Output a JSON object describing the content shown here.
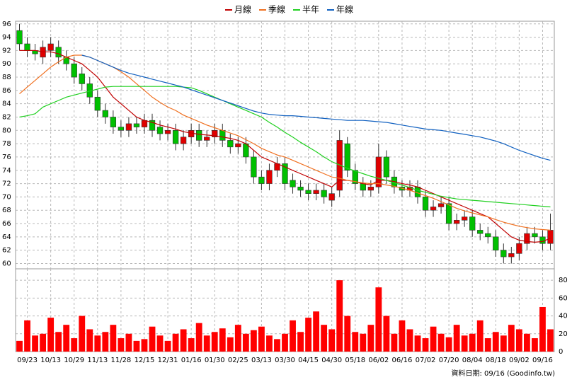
{
  "chart_data": {
    "type": "candlestick",
    "categories": [
      null,
      "09/23",
      null,
      null,
      "10/13",
      null,
      null,
      "10/29",
      null,
      null,
      "11/13",
      null,
      null,
      "11/28",
      null,
      null,
      "12/15",
      null,
      null,
      "12/31",
      null,
      null,
      "01/16",
      null,
      null,
      "01/30",
      null,
      null,
      "02/25",
      null,
      null,
      "03/13",
      null,
      null,
      "03/30",
      null,
      null,
      "04/15",
      null,
      null,
      "04/30",
      null,
      null,
      "05/18",
      null,
      null,
      "06/02",
      null,
      null,
      "06/16",
      null,
      null,
      "07/02",
      null,
      null,
      "07/20",
      null,
      null,
      "08/04",
      null,
      null,
      "08/18",
      null,
      null,
      "09/02",
      null,
      null,
      "09/16",
      null
    ],
    "open": [
      95,
      93,
      92,
      91,
      92,
      92.5,
      91,
      90,
      88.5,
      87,
      85,
      83,
      82,
      80.5,
      80,
      81,
      80.5,
      81.5,
      80.5,
      79.5,
      80,
      78,
      79,
      80,
      78.5,
      79,
      80,
      78.5,
      77.5,
      78,
      76,
      73,
      72,
      74,
      75,
      72.5,
      71.5,
      71,
      70.5,
      71,
      69.5,
      71,
      78,
      74,
      72,
      71,
      71.5,
      76,
      73,
      71.5,
      71,
      71.5,
      70,
      68,
      68.5,
      69,
      66,
      66.5,
      67,
      65,
      64.5,
      64,
      62,
      61,
      61.5,
      63,
      64.5,
      64,
      63
    ],
    "high": [
      96,
      94,
      93,
      93.5,
      94,
      93.5,
      92,
      91,
      89.5,
      88,
      86,
      84,
      83,
      81.5,
      82,
      82,
      82.5,
      82.5,
      81.5,
      81,
      81,
      80,
      81,
      81,
      80,
      81,
      81,
      79.5,
      79,
      79,
      77,
      74,
      75,
      76,
      76,
      73.5,
      72.5,
      72,
      72,
      72,
      71.5,
      80,
      79,
      75,
      73,
      72.5,
      78,
      77,
      74,
      72.5,
      72.5,
      72.5,
      71,
      69.5,
      70,
      70,
      67.5,
      68,
      68,
      66,
      65.5,
      65,
      63,
      62.5,
      64,
      65.5,
      65.5,
      65,
      67.5
    ],
    "low": [
      92,
      91,
      90.5,
      90,
      91,
      90,
      89,
      87,
      86,
      84,
      82,
      81,
      79.5,
      79,
      79,
      79.5,
      79.5,
      79,
      78.5,
      78.5,
      77,
      77,
      78,
      77.5,
      77.5,
      78,
      77.5,
      76.5,
      76.5,
      75,
      72,
      71,
      71,
      73,
      71,
      70.5,
      70,
      69.5,
      69.5,
      69,
      68.5,
      70,
      73,
      71,
      70,
      70,
      70.5,
      72,
      70.5,
      70,
      70,
      69,
      67,
      67,
      67.5,
      65,
      65,
      65.5,
      64,
      63.5,
      63,
      61,
      60,
      60,
      60.5,
      62,
      63,
      62,
      62
    ],
    "close": [
      93,
      92,
      91.5,
      92.5,
      93,
      91,
      90,
      88,
      87,
      85,
      83,
      82,
      80.5,
      80,
      81,
      80.5,
      81.5,
      80,
      79.5,
      80,
      78,
      79,
      80,
      78.5,
      79,
      80,
      78.5,
      77.5,
      78,
      76,
      73,
      72,
      74,
      75,
      72,
      71.5,
      71,
      70.5,
      71,
      70,
      70.5,
      78.5,
      74,
      72,
      71,
      71.5,
      76,
      73,
      71.5,
      71,
      71.5,
      70,
      68,
      68.5,
      69,
      66,
      66.5,
      67,
      65,
      64.5,
      64,
      62,
      61,
      61.5,
      63,
      64.5,
      64,
      63,
      65
    ],
    "up_color": "#e00000",
    "down_color": "#00c000",
    "series": [
      {
        "name": "月線",
        "color": "#c00000",
        "values": [
          92,
          92,
          92,
          91.8,
          91.8,
          91.5,
          91,
          90.5,
          90,
          89,
          88,
          86.5,
          85,
          84,
          83,
          82,
          81.5,
          81.2,
          80.8,
          80.5,
          80.2,
          79.8,
          79.6,
          79.4,
          79.3,
          79.2,
          79,
          78.8,
          78.5,
          78,
          77,
          76,
          75.5,
          75,
          74.5,
          74,
          73.5,
          73,
          72.5,
          72,
          71.5,
          72.5,
          72.5,
          72.3,
          72,
          71.8,
          72.5,
          72.5,
          72.3,
          72,
          71.8,
          71.5,
          71,
          70.5,
          70,
          69.5,
          69,
          68.5,
          68,
          67.5,
          67,
          66,
          65,
          64,
          63.5,
          63.3,
          63.2,
          63.3,
          63.8
        ]
      },
      {
        "name": "季線",
        "color": "#f07020",
        "values": [
          85.5,
          86.5,
          87.5,
          88.5,
          89.5,
          90.3,
          91,
          91.3,
          91.3,
          91,
          90.5,
          90,
          89.5,
          88.8,
          88,
          87,
          86,
          85,
          84.2,
          83.5,
          83,
          82.3,
          81.8,
          81.3,
          80.8,
          80.4,
          80,
          79.6,
          79.2,
          78.6,
          78,
          77.3,
          76.8,
          76.3,
          76,
          75.5,
          75,
          74.5,
          74,
          73.5,
          73,
          72.8,
          72.5,
          72.3,
          72.1,
          72,
          72,
          71.8,
          71.6,
          71.3,
          71,
          70.6,
          70.2,
          69.8,
          69.3,
          68.8,
          68.3,
          67.9,
          67.6,
          67.3,
          67,
          66.6,
          66.2,
          65.9,
          65.6,
          65.4,
          65.2,
          65.1,
          65
        ]
      },
      {
        "name": "半年",
        "color": "#20d020",
        "values": [
          82,
          82.2,
          82.5,
          83.5,
          84,
          84.5,
          85,
          85.3,
          85.6,
          85.9,
          86.2,
          86.5,
          86.6,
          86.6,
          86.6,
          86.6,
          86.6,
          86.6,
          86.6,
          86.6,
          86.6,
          86.5,
          86.4,
          86,
          85.5,
          85,
          84.5,
          84,
          83.5,
          83,
          82.5,
          82,
          81.2,
          80.5,
          79.7,
          79,
          78.2,
          77.5,
          76.8,
          76,
          75.3,
          74.8,
          74.3,
          73.9,
          73.5,
          73.1,
          72.8,
          72.5,
          72.1,
          71.8,
          71.4,
          71,
          70.7,
          70.4,
          70.1,
          69.9,
          69.7,
          69.6,
          69.5,
          69.4,
          69.3,
          69.2,
          69.1,
          69,
          68.9,
          68.8,
          68.7,
          68.6,
          68.5
        ]
      },
      {
        "name": "年線",
        "color": "#1060c0",
        "values": [
          null,
          null,
          null,
          null,
          null,
          null,
          null,
          null,
          91.3,
          91,
          90.5,
          90,
          89.5,
          89,
          88.6,
          88.3,
          88,
          87.7,
          87.4,
          87.1,
          86.8,
          86.5,
          86.1,
          85.7,
          85.3,
          84.9,
          84.5,
          84.1,
          83.7,
          83.3,
          82.9,
          82.6,
          82.4,
          82.3,
          82.2,
          82.2,
          82.1,
          82,
          81.9,
          81.8,
          81.7,
          81.6,
          81.5,
          81.5,
          81.5,
          81.4,
          81.3,
          81.2,
          81,
          80.8,
          80.6,
          80.4,
          80.2,
          80.1,
          80,
          79.8,
          79.6,
          79.4,
          79.2,
          79,
          78.7,
          78.4,
          78,
          77.5,
          77,
          76.6,
          76.2,
          75.8,
          75.5
        ]
      }
    ],
    "ylim": [
      59.2,
      96.4
    ],
    "yticks": [
      60,
      62,
      64,
      66,
      68,
      70,
      72,
      74,
      76,
      78,
      80,
      82,
      84,
      86,
      88,
      90,
      92,
      94,
      96
    ],
    "volume": [
      12,
      35,
      18,
      20,
      38,
      22,
      30,
      15,
      40,
      25,
      18,
      22,
      30,
      15,
      20,
      12,
      14,
      28,
      18,
      12,
      20,
      25,
      15,
      32,
      18,
      22,
      26,
      16,
      30,
      20,
      24,
      28,
      18,
      14,
      20,
      35,
      22,
      38,
      45,
      30,
      25,
      80,
      40,
      22,
      20,
      30,
      72,
      40,
      20,
      35,
      25,
      18,
      15,
      28,
      20,
      16,
      30,
      18,
      20,
      35,
      15,
      22,
      18,
      30,
      25,
      20,
      15,
      50,
      25
    ],
    "volume_color": "#ff0000",
    "y2lim": [
      0,
      92.8
    ],
    "y2ticks": [
      0,
      20,
      40,
      60,
      80
    ],
    "grid": true,
    "footnote": "資料日期: 09/16 (Goodinfo.tw)"
  }
}
